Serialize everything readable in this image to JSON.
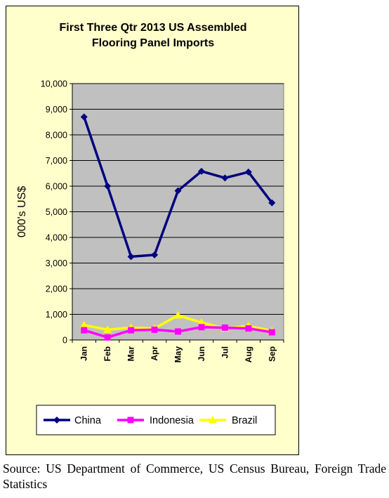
{
  "chart_data": {
    "type": "line",
    "title_lines": [
      "First Three Qtr 2013 US Assembled",
      "Flooring  Panel Imports"
    ],
    "xlabel": "",
    "ylabel": "000's US$",
    "categories": [
      "Jan",
      "Feb",
      "Mar",
      "Apr",
      "May",
      "Jun",
      "Jul",
      "Aug",
      "Sep"
    ],
    "ylim": [
      0,
      10000
    ],
    "yticks": [
      0,
      1000,
      2000,
      3000,
      4000,
      5000,
      6000,
      7000,
      8000,
      9000,
      10000
    ],
    "ytick_labels": [
      "0",
      "1,000",
      "2,000",
      "3,000",
      "4,000",
      "5,000",
      "6,000",
      "7,000",
      "8,000",
      "9,000",
      "10,000"
    ],
    "grid": true,
    "plot_background": "#c0c0c0",
    "legend_position": "bottom",
    "series": [
      {
        "name": "China",
        "color": "#000080",
        "marker": "diamond",
        "values": [
          8700,
          6000,
          3250,
          3320,
          5820,
          6580,
          6320,
          6550,
          5350
        ]
      },
      {
        "name": "Indonesia",
        "color": "#ff00ff",
        "marker": "square",
        "values": [
          380,
          100,
          380,
          400,
          330,
          500,
          480,
          450,
          300
        ]
      },
      {
        "name": "Brazil",
        "color": "#ffff00",
        "marker": "triangle",
        "values": [
          580,
          400,
          480,
          450,
          960,
          680,
          450,
          550,
          350
        ]
      }
    ]
  },
  "source_note": "Source: US Department of Commerce, US Census Bureau, Foreign Trade Statistics"
}
